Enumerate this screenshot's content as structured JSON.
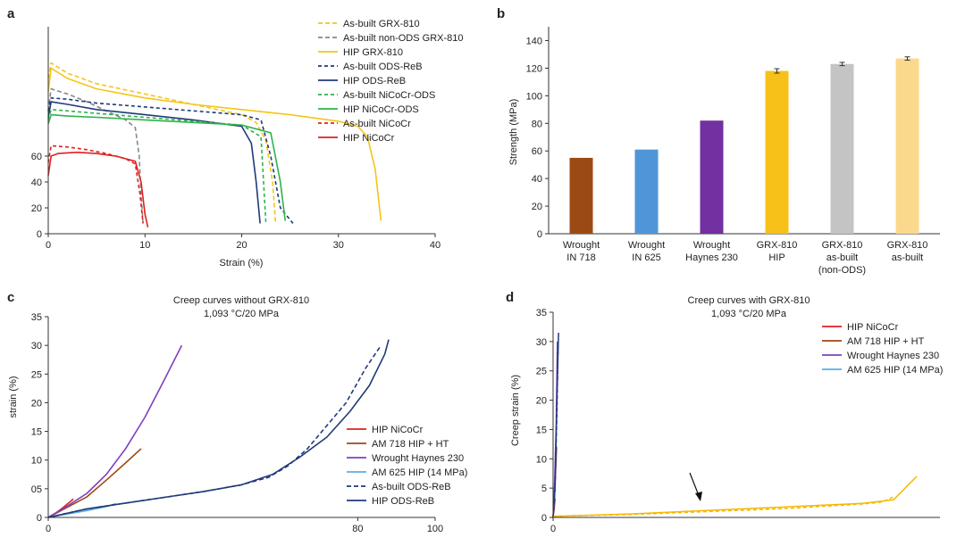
{
  "panels": {
    "a": {
      "letter": "a",
      "type": "line",
      "xlabel": "Strain (%)",
      "ylabel": "",
      "xlim": [
        0,
        40
      ],
      "ylim": [
        0,
        160
      ],
      "xticks": [
        0,
        10,
        20,
        30,
        40
      ],
      "yticks": [
        0,
        20,
        40,
        60
      ],
      "series": [
        {
          "name": "As-built GRX-810",
          "color": "#f5c518",
          "dash": "5,3",
          "x": [
            0,
            0.3,
            2,
            5,
            10,
            15,
            20,
            21.5,
            22.5,
            23.2,
            23.5
          ],
          "y": [
            120,
            132,
            124,
            116,
            108,
            100,
            92,
            86,
            72,
            40,
            8
          ]
        },
        {
          "name": "As-built non-ODS GRX-810",
          "color": "#888888",
          "dash": "5,3",
          "x": [
            0,
            0.3,
            2,
            4,
            6,
            8,
            9,
            9.4,
            9.6,
            9.8
          ],
          "y": [
            95,
            112,
            108,
            102,
            95,
            88,
            82,
            60,
            30,
            8
          ]
        },
        {
          "name": "HIP GRX-810",
          "color": "#f5c518",
          "dash": "",
          "x": [
            0,
            0.3,
            2,
            5,
            10,
            15,
            20,
            25,
            30,
            32,
            33,
            33.8,
            34.4
          ],
          "y": [
            110,
            128,
            120,
            112,
            105,
            100,
            96,
            92,
            87,
            83,
            75,
            50,
            10
          ]
        },
        {
          "name": "As-built ODS-ReB",
          "color": "#1f3a7a",
          "dash": "4,3",
          "x": [
            0,
            0.3,
            2,
            5,
            10,
            15,
            20,
            22,
            23,
            24,
            25.3
          ],
          "y": [
            95,
            105,
            104,
            101,
            98,
            95,
            92,
            88,
            60,
            20,
            8
          ]
        },
        {
          "name": "HIP ODS-ReB",
          "color": "#1f3a7a",
          "dash": "",
          "x": [
            0,
            0.3,
            2,
            5,
            10,
            15,
            20,
            21,
            21.5,
            21.9
          ],
          "y": [
            90,
            102,
            100,
            96,
            92,
            88,
            83,
            70,
            40,
            8
          ]
        },
        {
          "name": "As-built NiCoCr-ODS",
          "color": "#2db34a",
          "dash": "4,3",
          "x": [
            0,
            0.3,
            2,
            5,
            10,
            15,
            20,
            22,
            22.5
          ],
          "y": [
            88,
            96,
            95,
            93,
            90,
            87,
            84,
            75,
            8
          ]
        },
        {
          "name": "HIP NiCoCr-ODS",
          "color": "#2db34a",
          "dash": "",
          "x": [
            0,
            0.3,
            2,
            5,
            10,
            15,
            20,
            23,
            24,
            24.5
          ],
          "y": [
            85,
            92,
            91,
            90,
            88,
            86,
            84,
            78,
            40,
            10
          ]
        },
        {
          "name": "As-built NiCoCr",
          "color": "#e02020",
          "dash": "4,3",
          "x": [
            0,
            0.3,
            2,
            4,
            6,
            8,
            9,
            9.5,
            9.8
          ],
          "y": [
            55,
            68,
            67,
            65,
            62,
            58,
            54,
            30,
            8
          ]
        },
        {
          "name": "HIP NiCoCr",
          "color": "#e02020",
          "dash": "",
          "x": [
            0,
            0.3,
            1,
            3,
            5,
            7,
            9,
            9.6,
            10,
            10.3
          ],
          "y": [
            45,
            60,
            62,
            63,
            62,
            60,
            56,
            40,
            15,
            5
          ]
        }
      ]
    },
    "b": {
      "letter": "b",
      "type": "bar",
      "ylabel": "Strength (MPa)",
      "ylim": [
        0,
        150
      ],
      "yticks": [
        0,
        20,
        40,
        60,
        80,
        100,
        120,
        140
      ],
      "categories": [
        {
          "lines": [
            "Wrought",
            "IN 718"
          ]
        },
        {
          "lines": [
            "Wrought",
            "IN 625"
          ]
        },
        {
          "lines": [
            "Wrought",
            "Haynes 230"
          ]
        },
        {
          "lines": [
            "GRX-810",
            "HIP"
          ]
        },
        {
          "lines": [
            "GRX-810",
            "as-built",
            "(non-ODS)"
          ]
        },
        {
          "lines": [
            "GRX-810",
            "as-built"
          ]
        }
      ],
      "values": [
        55,
        61,
        82,
        118,
        123,
        127
      ],
      "errors": [
        0,
        0,
        0,
        1.6,
        1.2,
        1.2
      ],
      "colors": [
        "#9c4a13",
        "#4f96d8",
        "#7330a1",
        "#f8c11a",
        "#c4c4c4",
        "#fbd98c"
      ]
    },
    "c": {
      "letter": "c",
      "type": "line",
      "title": "Creep curves without GRX-810",
      "subtitle": "1,093 °C/20 MPa",
      "ylabel": "strain (%)",
      "xlim": [
        0,
        100
      ],
      "ylim": [
        0,
        35
      ],
      "xticks": [
        0,
        80,
        100
      ],
      "yticks": [
        0,
        5,
        10,
        15,
        20,
        25,
        30,
        35
      ],
      "ytick_labels": [
        "0",
        "05",
        "10",
        "15",
        "20",
        "25",
        "30",
        "35"
      ],
      "series": [
        {
          "name": "HIP NiCoCr",
          "color": "#e02020",
          "dash": "",
          "x": [
            0,
            2,
            4,
            6.5
          ],
          "y": [
            0,
            0.8,
            1.8,
            3.2
          ]
        },
        {
          "name": "AM 718 HIP + HT",
          "color": "#9c4a13",
          "dash": "",
          "x": [
            0,
            5,
            10,
            15,
            20,
            24
          ],
          "y": [
            0,
            1.8,
            3.6,
            6.5,
            9.5,
            12
          ]
        },
        {
          "name": "Wrought Haynes 230",
          "color": "#7f3fbf",
          "dash": "",
          "x": [
            0,
            5,
            10,
            15,
            20,
            25,
            30,
            34.5
          ],
          "y": [
            0,
            2,
            4.2,
            7.5,
            12,
            17.5,
            24,
            30
          ]
        },
        {
          "name": "AM 625 HIP (14 MPa)",
          "color": "#5aaee6",
          "dash": "",
          "x": [
            0,
            5,
            10,
            15,
            17.5
          ],
          "y": [
            0,
            0.6,
            1.2,
            1.9,
            2.4
          ]
        },
        {
          "name": "As-built ODS-ReB",
          "color": "#1f3a7a",
          "dash": "5,3",
          "x": [
            0,
            10,
            20,
            30,
            40,
            50,
            57,
            62,
            67,
            72,
            77,
            82,
            86
          ],
          "y": [
            0,
            1.5,
            2.5,
            3.5,
            4.5,
            5.7,
            7,
            9,
            12,
            16,
            20,
            26,
            30
          ]
        },
        {
          "name": "HIP ODS-ReB",
          "color": "#1f3a7a",
          "dash": "",
          "x": [
            0,
            10,
            20,
            30,
            40,
            50,
            58,
            65,
            72,
            78,
            83,
            87,
            88
          ],
          "y": [
            0,
            1.5,
            2.5,
            3.5,
            4.5,
            5.7,
            7.5,
            10.5,
            14,
            18.5,
            23,
            28.5,
            31
          ]
        }
      ]
    },
    "d": {
      "letter": "d",
      "type": "line",
      "title": "Creep curves with GRX-810",
      "subtitle": "1,093 °C/20 MPa",
      "ylabel": "Creep strain (%)",
      "xlim": [
        0,
        100
      ],
      "ylim": [
        0,
        35
      ],
      "xticks": [
        0
      ],
      "yticks": [
        0,
        5,
        10,
        15,
        20,
        25,
        30,
        35
      ],
      "series": [
        {
          "name": "HIP NiCoCr",
          "color": "#e02020",
          "dash": "",
          "x": [
            0,
            0.3,
            0.5
          ],
          "y": [
            0,
            1.5,
            3.2
          ]
        },
        {
          "name": "AM 718 HIP + HT",
          "color": "#9c4a13",
          "dash": "",
          "x": [
            0,
            0.3,
            0.6,
            0.9
          ],
          "y": [
            0,
            3,
            7,
            12
          ]
        },
        {
          "name": "Wrought Haynes 230",
          "color": "#7f3fbf",
          "dash": "",
          "x": [
            0,
            0.4,
            0.8,
            1.1
          ],
          "y": [
            0,
            6,
            16,
            30
          ]
        },
        {
          "name": "AM 625 HIP (14 MPa)",
          "color": "#5aaee6",
          "dash": "",
          "x": [
            0,
            0.3
          ],
          "y": [
            0,
            2.4
          ]
        },
        {
          "name": "",
          "color": "#1f3a7a",
          "dash": "4,3",
          "x": [
            0,
            0.5,
            1,
            1.3
          ],
          "y": [
            0,
            5,
            18,
            30
          ]
        },
        {
          "name": "",
          "color": "#1f3a7a",
          "dash": "",
          "x": [
            0,
            0.5,
            1,
            1.4
          ],
          "y": [
            0,
            5,
            20,
            31.5
          ]
        },
        {
          "name": "",
          "color": "#f5b800",
          "dash": "4,3",
          "x": [
            0,
            20,
            40,
            60,
            80,
            85,
            88
          ],
          "y": [
            0.2,
            0.5,
            1,
            1.5,
            2.3,
            2.6,
            3.5
          ]
        },
        {
          "name": "",
          "color": "#f5b800",
          "dash": "",
          "x": [
            0,
            20,
            40,
            60,
            80,
            88,
            94
          ],
          "y": [
            0.2,
            0.6,
            1.2,
            1.8,
            2.4,
            3,
            7
          ]
        }
      ]
    }
  }
}
